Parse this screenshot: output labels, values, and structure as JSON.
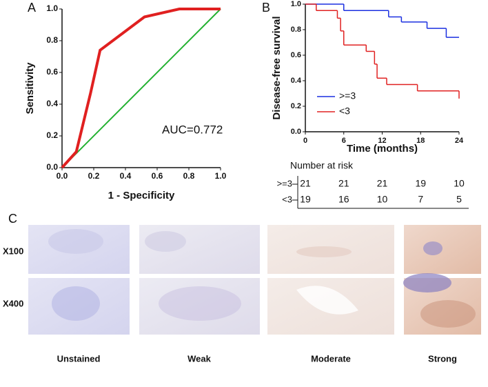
{
  "chart_data": [
    {
      "type": "line",
      "panel": "A",
      "x_label": "1 - Specificity",
      "y_label": "Sensitivity",
      "annotation": "AUC=0.772",
      "xlim": [
        0,
        1
      ],
      "ylim": [
        0,
        1
      ],
      "xticks": [
        {
          "value": 0,
          "label": "0.0"
        },
        0.2,
        0.4,
        0.6,
        0.8,
        {
          "value": 1,
          "label": "1.0"
        }
      ],
      "yticks": [
        {
          "value": 0,
          "label": "0.0"
        },
        0.2,
        0.4,
        0.6,
        0.8,
        {
          "value": 1,
          "label": "1.0"
        }
      ],
      "series": [
        {
          "color": "#22b030",
          "x": [
            0,
            1
          ],
          "values": [
            0,
            1
          ]
        },
        {
          "color": "#e02020",
          "x": [
            0,
            0.09,
            0.18,
            0.24,
            0.52,
            0.74,
            1
          ],
          "values": [
            0,
            0.1,
            0.47,
            0.74,
            0.95,
            1,
            1
          ]
        }
      ]
    },
    {
      "type": "line",
      "step": true,
      "panel": "B",
      "x_label": "Time (months)",
      "y_label": "Disease-free survival",
      "xlim": [
        0,
        24
      ],
      "ylim": [
        0,
        1
      ],
      "xticks": [
        0,
        6,
        12,
        18,
        24
      ],
      "yticks": [
        {
          "value": 0,
          "label": "0.0"
        },
        0.2,
        0.4,
        0.6,
        0.8,
        {
          "value": 1,
          "label": "1.0"
        }
      ],
      "series": [
        {
          "name": ">=3",
          "color": "#1a2fe0",
          "x": [
            0,
            6,
            13,
            15,
            19,
            22,
            24
          ],
          "values": [
            1,
            0.95,
            0.9,
            0.86,
            0.81,
            0.74,
            0.74
          ]
        },
        {
          "name": "<3",
          "color": "#e02020",
          "x": [
            0,
            1.7,
            5,
            5.5,
            6,
            9.5,
            10.8,
            11.2,
            12.7,
            17.5,
            24
          ],
          "values": [
            1,
            0.95,
            0.89,
            0.79,
            0.68,
            0.63,
            0.53,
            0.42,
            0.37,
            0.32,
            0.26
          ]
        }
      ],
      "risk_table": {
        "title": "Number at risk",
        "rows": [
          {
            "name": ">=3",
            "values": [
              21,
              21,
              21,
              19,
              10
            ]
          },
          {
            "name": "<3",
            "values": [
              19,
              16,
              10,
              7,
              5
            ]
          }
        ]
      }
    }
  ],
  "panel_c": {
    "panel": "C",
    "rows": [
      "X100",
      "X400"
    ],
    "columns": [
      "Unstained",
      "Weak",
      "Moderate",
      "Strong"
    ]
  }
}
